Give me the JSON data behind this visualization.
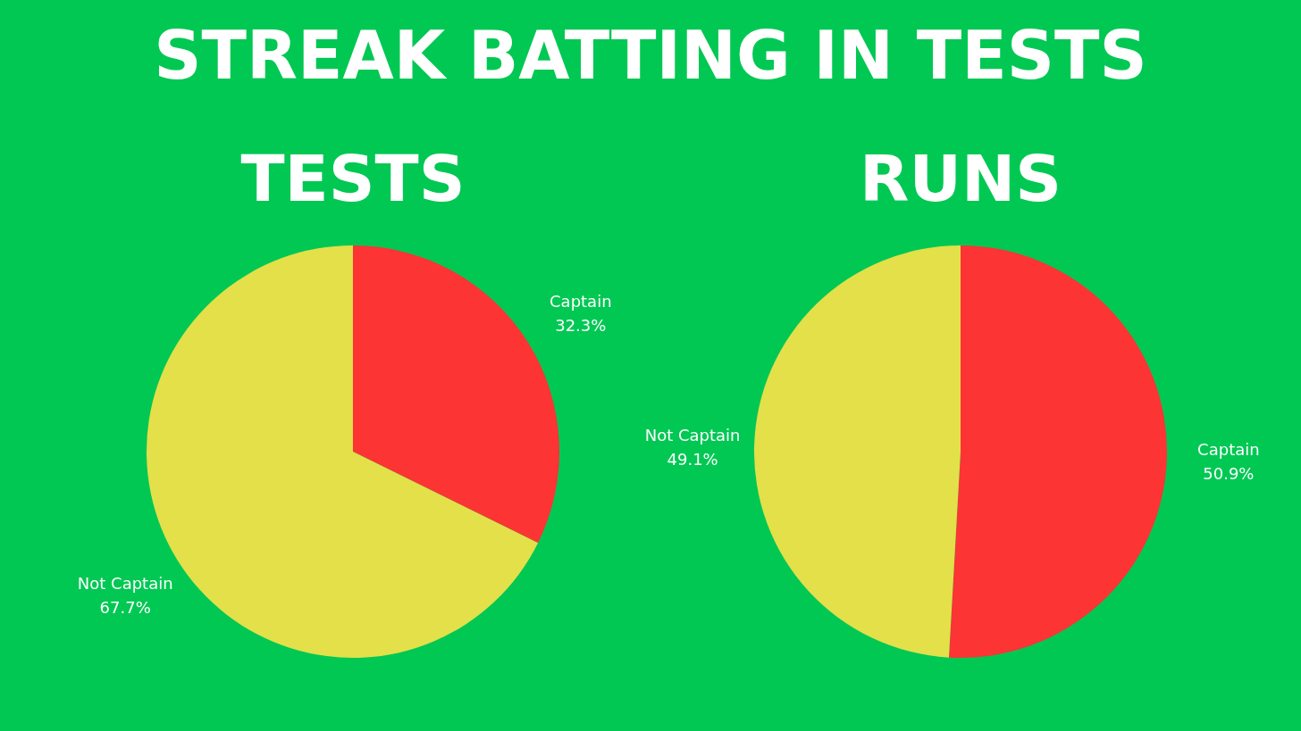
{
  "chart_data": [
    {
      "type": "pie",
      "title": "STREAK BATTING IN TESTS",
      "subtitle": "TESTS",
      "categories": [
        "Captain",
        "Not Captain"
      ],
      "values": [
        32.3,
        67.7
      ],
      "colors": [
        "#fc3434",
        "#e3e04a"
      ],
      "value_labels": [
        "32.3%",
        "67.7%"
      ]
    },
    {
      "type": "pie",
      "subtitle": "RUNS",
      "categories": [
        "Captain",
        "Not Captain"
      ],
      "values": [
        50.9,
        49.1
      ],
      "colors": [
        "#fc3434",
        "#e3e04a"
      ],
      "value_labels": [
        "50.9%",
        "49.1%"
      ]
    }
  ]
}
